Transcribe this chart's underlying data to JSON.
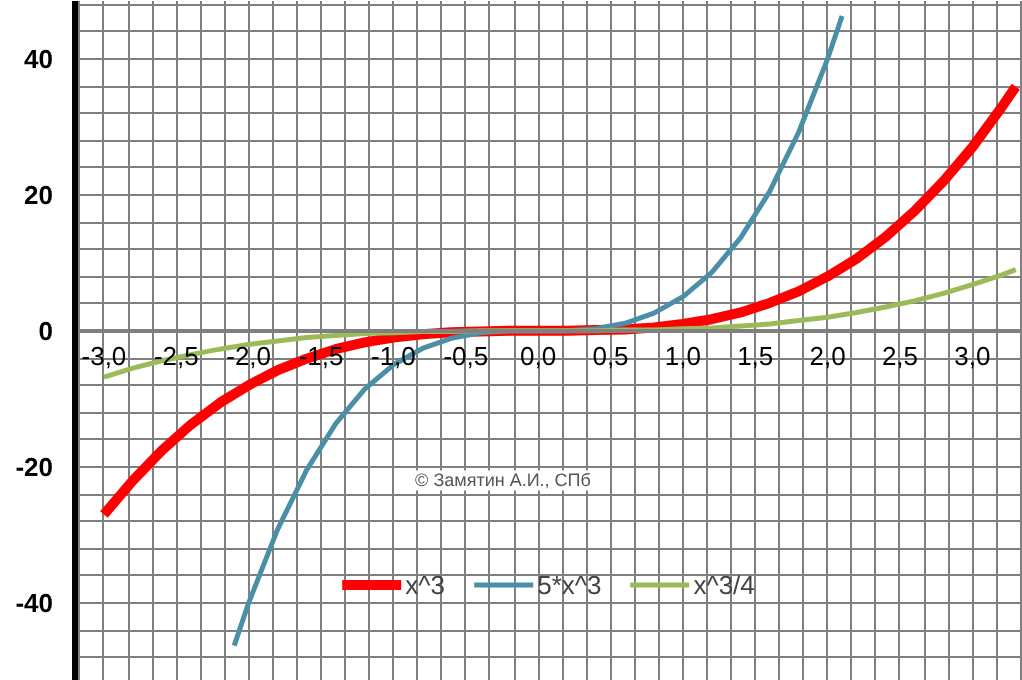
{
  "chart_data": {
    "type": "line",
    "xlim": [
      -3.2,
      3.35
    ],
    "ylim": [
      -51.5,
      48.5
    ],
    "xticks": [
      {
        "value": -3,
        "label": "-3,0"
      },
      {
        "value": -2.5,
        "label": "-2,5"
      },
      {
        "value": -2,
        "label": "-2,0"
      },
      {
        "value": -1.5,
        "label": "-1,5"
      },
      {
        "value": -1,
        "label": "-1,0"
      },
      {
        "value": -0.5,
        "label": "-0,5"
      },
      {
        "value": 0,
        "label": "0,0"
      },
      {
        "value": 0.5,
        "label": "0,5"
      },
      {
        "value": 1,
        "label": "1,0"
      },
      {
        "value": 1.5,
        "label": "1,5"
      },
      {
        "value": 2,
        "label": "2,0"
      },
      {
        "value": 2.5,
        "label": "2,5"
      },
      {
        "value": 3,
        "label": "3,0"
      }
    ],
    "yticks": [
      -40,
      -20,
      0,
      20,
      40
    ],
    "grid": true,
    "legend": "bottom",
    "marker": "none",
    "line_style": "solid",
    "annotations": [
      "© Замятин А.И., СПб"
    ],
    "series": [
      {
        "name": "x^3",
        "color": "#ff0000",
        "x": [
          -3.0,
          -2.8,
          -2.6,
          -2.4,
          -2.2,
          -2.0,
          -1.8,
          -1.6,
          -1.4,
          -1.2,
          -1.0,
          -0.8,
          -0.6,
          -0.4,
          -0.2,
          0,
          0.2,
          0.4,
          0.6,
          0.8,
          1.0,
          1.2,
          1.4,
          1.6,
          1.8,
          2.0,
          2.2,
          2.4,
          2.6,
          2.8,
          3.0,
          3.2,
          3.3
        ],
        "values": [
          -27,
          -22.0,
          -17.6,
          -13.8,
          -10.6,
          -8.0,
          -5.8,
          -4.1,
          -2.7,
          -1.7,
          -1.0,
          -0.5,
          -0.2,
          -0.1,
          0,
          0,
          0,
          0.1,
          0.2,
          0.5,
          1.0,
          1.7,
          2.7,
          4.1,
          5.8,
          8.0,
          10.6,
          13.8,
          17.6,
          22.0,
          27,
          32.8,
          35.9
        ]
      },
      {
        "name": "5*x^3",
        "color": "#4a8ea8",
        "x": [
          -2.1,
          -2.0,
          -1.8,
          -1.6,
          -1.4,
          -1.2,
          -1.0,
          -0.8,
          -0.6,
          -0.4,
          -0.2,
          0,
          0.2,
          0.4,
          0.6,
          0.8,
          1.0,
          1.2,
          1.4,
          1.6,
          1.8,
          2.0,
          2.1
        ],
        "values": [
          -46.3,
          -40,
          -29.2,
          -20.5,
          -13.7,
          -8.6,
          -5,
          -2.6,
          -1.1,
          -0.3,
          0,
          0,
          0,
          0.3,
          1.1,
          2.6,
          5,
          8.6,
          13.7,
          20.5,
          29.2,
          40,
          46.3
        ]
      },
      {
        "name": "x^3/4",
        "color": "#9bbb59",
        "x": [
          -3.0,
          -2.8,
          -2.6,
          -2.4,
          -2.2,
          -2.0,
          -1.8,
          -1.6,
          -1.4,
          -1.2,
          -1.0,
          -0.8,
          -0.6,
          -0.4,
          -0.2,
          0,
          0.2,
          0.4,
          0.6,
          0.8,
          1.0,
          1.2,
          1.4,
          1.6,
          1.8,
          2.0,
          2.2,
          2.4,
          2.6,
          2.8,
          3.0,
          3.2,
          3.3
        ],
        "values": [
          -6.8,
          -5.5,
          -4.4,
          -3.5,
          -2.7,
          -2.0,
          -1.5,
          -1.0,
          -0.7,
          -0.4,
          -0.3,
          -0.1,
          -0.1,
          0,
          0,
          0,
          0,
          0,
          0.1,
          0.1,
          0.3,
          0.4,
          0.7,
          1.0,
          1.5,
          2.0,
          2.7,
          3.5,
          4.4,
          5.5,
          6.8,
          8.2,
          9.0
        ]
      }
    ]
  }
}
